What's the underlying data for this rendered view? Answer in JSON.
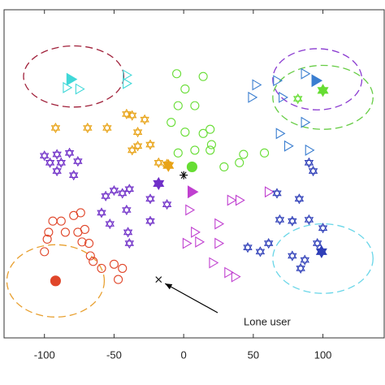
{
  "chart_data": {
    "type": "scatter",
    "xlim": [
      -129,
      144
    ],
    "ylim": [
      -120,
      116
    ],
    "xticks": [
      -100,
      -50,
      0,
      50,
      100
    ],
    "series": [
      {
        "color": "#e0462a",
        "marker": "circle",
        "filled": false,
        "x": [
          -94,
          -88,
          -79,
          -74,
          -97,
          -85,
          -76,
          -71,
          -98,
          -73,
          -68,
          -100,
          -67,
          -65,
          -59,
          -50,
          -47,
          -44
        ],
        "y": [
          -36,
          -36,
          -32,
          -30,
          -44,
          -44,
          -44,
          -42,
          -49,
          -51,
          -52,
          -58,
          -61,
          -65,
          -70,
          -67,
          -78,
          -70
        ]
      },
      {
        "color": "#e0462a",
        "marker": "circle",
        "filled": true,
        "x": [
          -92
        ],
        "y": [
          -79
        ]
      },
      {
        "color": "#7030c8",
        "marker": "star",
        "filled": false,
        "x": [
          -100,
          -91,
          -82,
          -96,
          -88,
          -76,
          -91,
          -79,
          -56,
          -50,
          -44,
          -39,
          -59,
          -41,
          -53,
          -40,
          -39,
          -24,
          -24,
          -12
        ],
        "y": [
          11,
          12,
          13,
          6,
          6,
          7,
          0,
          -3,
          -18,
          -14,
          -16,
          -13,
          -30,
          -28,
          -38,
          -44,
          -52,
          -20,
          -36,
          -24
        ]
      },
      {
        "color": "#7030c8",
        "marker": "star",
        "filled": true,
        "x": [
          -18
        ],
        "y": [
          -9
        ]
      },
      {
        "color": "#e8a317",
        "marker": "star",
        "filled": false,
        "x": [
          -92,
          -69,
          -55,
          -41,
          -37,
          -28,
          -33,
          -24,
          -37,
          -33,
          -18,
          -12
        ],
        "y": [
          31,
          31,
          31,
          41,
          40,
          37,
          28,
          19,
          15,
          18,
          6,
          5
        ]
      },
      {
        "color": "#e8a317",
        "marker": "star",
        "filled": true,
        "x": [
          -11
        ],
        "y": [
          4
        ]
      },
      {
        "color": "#66dd33",
        "marker": "circle",
        "filled": false,
        "x": [
          -5,
          14,
          1,
          -4,
          -9,
          8,
          14,
          19,
          1,
          -4,
          20,
          8,
          43,
          58,
          29,
          40,
          19
        ],
        "y": [
          70,
          68,
          59,
          47,
          35,
          47,
          27,
          30,
          28,
          13,
          19,
          15,
          12,
          13,
          3,
          6,
          15
        ]
      },
      {
        "color": "#66dd33",
        "marker": "circle",
        "filled": true,
        "x": [
          6
        ],
        "y": [
          3
        ]
      },
      {
        "color": "#66dd33",
        "marker": "star",
        "filled": false,
        "x": [
          82
        ],
        "y": [
          52
        ]
      },
      {
        "color": "#66dd33",
        "marker": "star",
        "filled": true,
        "x": [
          100
        ],
        "y": [
          58
        ]
      },
      {
        "color": "#3a7ed0",
        "marker": "triangle",
        "filled": false,
        "x": [
          52,
          67,
          49,
          71,
          87,
          87,
          75,
          90,
          69
        ],
        "y": [
          62,
          65,
          53,
          53,
          70,
          35,
          18,
          15,
          27
        ]
      },
      {
        "color": "#3a7ed0",
        "marker": "triangle",
        "filled": true,
        "x": [
          95
        ],
        "y": [
          65
        ]
      },
      {
        "color": "#40d8d8",
        "marker": "triangle",
        "filled": false,
        "x": [
          -75,
          -84,
          -41,
          -41
        ],
        "y": [
          59,
          60,
          69,
          63
        ]
      },
      {
        "color": "#40d8d8",
        "marker": "triangle",
        "filled": true,
        "x": [
          -81
        ],
        "y": [
          66
        ]
      },
      {
        "color": "#c040d0",
        "marker": "triangle",
        "filled": false,
        "x": [
          34,
          40,
          61,
          4,
          25,
          8,
          11,
          25,
          21,
          32,
          37,
          2
        ],
        "y": [
          -21,
          -21,
          -15,
          -28,
          -38,
          -44,
          -51,
          -52,
          -66,
          -73,
          -76,
          -52
        ]
      },
      {
        "color": "#c040d0",
        "marker": "triangle",
        "filled": true,
        "x": [
          6
        ],
        "y": [
          -15
        ]
      },
      {
        "color": "#2f3fb8",
        "marker": "star",
        "filled": false,
        "x": [
          90,
          93,
          67,
          83,
          69,
          78,
          90,
          100,
          61,
          46,
          55,
          78,
          87,
          84,
          96
        ],
        "y": [
          6,
          0,
          -16,
          -20,
          -35,
          -36,
          -35,
          -41,
          -52,
          -55,
          -58,
          -61,
          -64,
          -70,
          -52
        ]
      },
      {
        "color": "#2f3fb8",
        "marker": "star",
        "filled": true,
        "x": [
          99
        ],
        "y": [
          -58
        ]
      },
      {
        "color": "#000000",
        "marker": "asterisk",
        "filled": false,
        "x": [
          0
        ],
        "y": [
          -3
        ]
      },
      {
        "color": "#000000",
        "marker": "cross",
        "filled": false,
        "x": [
          -18
        ],
        "y": [
          -78
        ]
      }
    ],
    "regions": [
      {
        "color": "#a0203a",
        "cx": -79,
        "cy": 68,
        "rx": 36,
        "ry": 22
      },
      {
        "color": "#8a3ad0",
        "cx": 96,
        "cy": 66,
        "rx": 32,
        "ry": 22
      },
      {
        "color": "#66cc44",
        "cx": 100,
        "cy": 53,
        "rx": 36,
        "ry": 23
      },
      {
        "color": "#6ad6e8",
        "cx": 100,
        "cy": -63,
        "rx": 36,
        "ry": 25
      },
      {
        "color": "#e8a030",
        "cx": -92,
        "cy": -79,
        "rx": 35,
        "ry": 26
      }
    ],
    "annotation": {
      "text": "Lone user",
      "series": 19
    }
  }
}
